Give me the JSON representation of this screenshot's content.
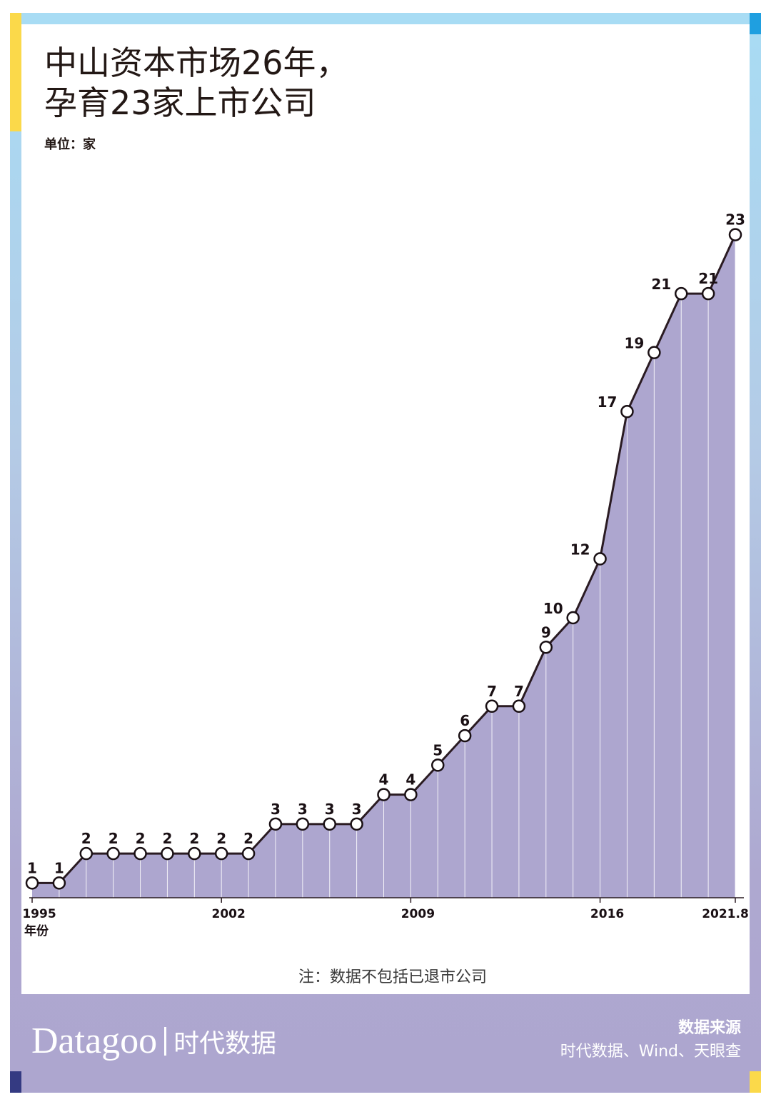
{
  "title": {
    "line1": "中山资本市场26年，",
    "line2": "孕育23家上市公司"
  },
  "unit": "单位：家",
  "note": "注：数据不包括已退市公司",
  "footer": {
    "brand_en": "Datagoo",
    "brand_cn": "时代数据",
    "source_label": "数据来源",
    "source_text": "时代数据、Wind、天眼查"
  },
  "colors": {
    "area": "#ada6cf",
    "line": "#2a1b22",
    "frame_top": "#a8dcf4",
    "frame_bottom": "#ada6cf",
    "accent_yellow": "#fbd94a",
    "accent_blue": "#1f9fe0",
    "accent_navy": "#343a82"
  },
  "chart_data": {
    "type": "area",
    "title": "中山资本市场26年，孕育23家上市公司",
    "ylabel": "单位：家",
    "xlabel": "年份",
    "x": [
      "1995",
      "1996",
      "1997",
      "1998",
      "1999",
      "2000",
      "2001",
      "2002",
      "2003",
      "2004",
      "2005",
      "2006",
      "2007",
      "2008",
      "2009",
      "2010",
      "2011",
      "2012",
      "2013",
      "2014",
      "2015",
      "2016",
      "2017",
      "2018",
      "2019",
      "2020",
      "2021.8"
    ],
    "values": [
      1,
      1,
      2,
      2,
      2,
      2,
      2,
      2,
      2,
      3,
      3,
      3,
      3,
      4,
      4,
      5,
      6,
      7,
      7,
      9,
      10,
      12,
      17,
      19,
      21,
      21,
      23
    ],
    "x_tick_labels": [
      "1995",
      "2002",
      "2009",
      "2016",
      "2021.8"
    ],
    "ylim": [
      0,
      25
    ],
    "grid": "vertical",
    "data_labels": true
  }
}
